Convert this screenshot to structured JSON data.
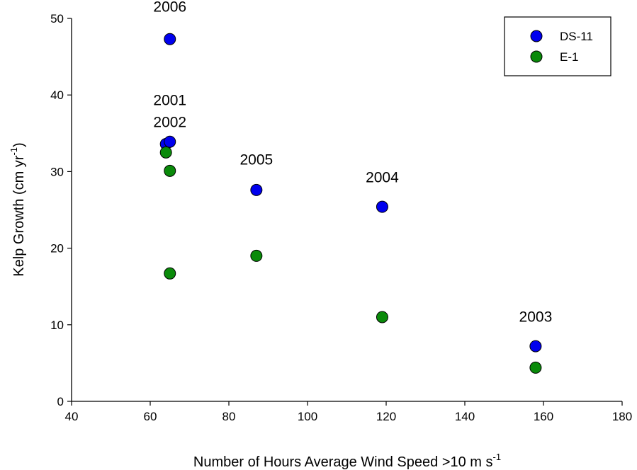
{
  "chart_data": {
    "type": "scatter",
    "title": "",
    "xlabel": "Number of Hours Average Wind Speed >10 m s",
    "xlabel_sup": "-1",
    "ylabel": "Kelp Growth (cm yr",
    "ylabel_sup": "-1",
    "ylabel_end": ")",
    "xlim": [
      40,
      180
    ],
    "ylim": [
      0,
      50
    ],
    "xticks": [
      40,
      60,
      80,
      100,
      120,
      140,
      160,
      180
    ],
    "yticks": [
      0,
      10,
      20,
      30,
      40,
      50
    ],
    "grid": false,
    "legend_position": "top-right",
    "series": [
      {
        "name": "DS-11",
        "color": "#0000ee",
        "points": [
          {
            "x": 65,
            "y": 47.3
          },
          {
            "x": 64,
            "y": 33.6
          },
          {
            "x": 65,
            "y": 33.9
          },
          {
            "x": 87,
            "y": 27.6
          },
          {
            "x": 119,
            "y": 25.4
          },
          {
            "x": 158,
            "y": 7.2
          }
        ]
      },
      {
        "name": "E-1",
        "color": "#0a8a0a",
        "points": [
          {
            "x": 64,
            "y": 32.5
          },
          {
            "x": 65,
            "y": 30.1
          },
          {
            "x": 65,
            "y": 16.7
          },
          {
            "x": 87,
            "y": 19.0
          },
          {
            "x": 119,
            "y": 11.0
          },
          {
            "x": 158,
            "y": 4.4
          }
        ]
      }
    ],
    "annotations": [
      {
        "text": "2006",
        "x": 65,
        "y": 50.9
      },
      {
        "text": "2001",
        "x": 65,
        "y": 38.7
      },
      {
        "text": "2002",
        "x": 65,
        "y": 35.8
      },
      {
        "text": "2005",
        "x": 87,
        "y": 30.9
      },
      {
        "text": "2004",
        "x": 119,
        "y": 28.6
      },
      {
        "text": "2003",
        "x": 158,
        "y": 10.4
      }
    ]
  }
}
